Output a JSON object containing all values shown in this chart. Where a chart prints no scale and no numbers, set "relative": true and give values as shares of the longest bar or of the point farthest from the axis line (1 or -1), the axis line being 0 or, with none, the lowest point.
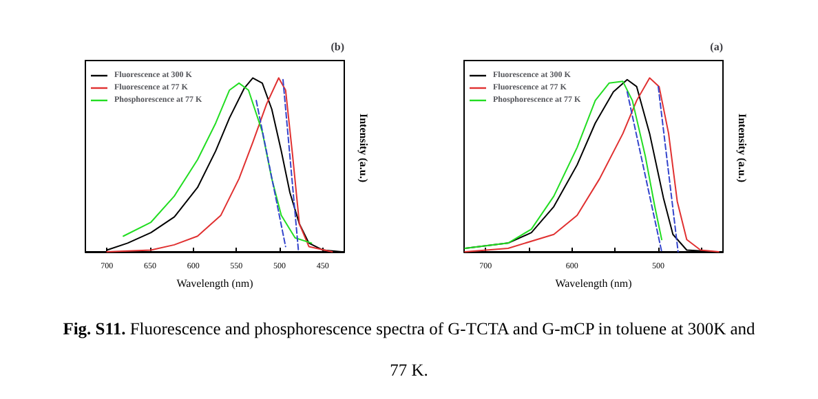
{
  "chart_data": [
    {
      "type": "line",
      "title": "(b)",
      "xlabel": "Wavelength (nm)",
      "ylabel": "Intensity (a.u.)",
      "relative": true,
      "xlim": [
        725,
        425
      ],
      "xticks": [
        700,
        650,
        600,
        550,
        500,
        450
      ],
      "tick_labels": "x",
      "grid": false,
      "legend": "top left",
      "marker": "none",
      "series": [
        {
          "name": "Fluorescence at 300 K",
          "color": "#000000",
          "line_style": "solid",
          "x": [
            700,
            676,
            649,
            622,
            595,
            574,
            558,
            541,
            531,
            520,
            509,
            498,
            488,
            477,
            466,
            450,
            428
          ],
          "values": [
            0.01,
            0.05,
            0.11,
            0.2,
            0.37,
            0.58,
            0.77,
            0.94,
            1.0,
            0.97,
            0.82,
            0.58,
            0.34,
            0.16,
            0.05,
            0.01,
            0
          ]
        },
        {
          "name": "Fluorescence at 77 K",
          "color": "#e03030",
          "line_style": "solid",
          "x": [
            700,
            649,
            622,
            595,
            568,
            547,
            531,
            515,
            501,
            493,
            485,
            477,
            466,
            439
          ],
          "values": [
            0,
            0.01,
            0.04,
            0.09,
            0.21,
            0.42,
            0.63,
            0.85,
            1.0,
            0.93,
            0.56,
            0.16,
            0.03,
            0
          ]
        },
        {
          "name": "Phosphorescence at 77 K",
          "color": "#22dd22",
          "line_style": "solid",
          "x": [
            681,
            649,
            622,
            595,
            574,
            558,
            547,
            536,
            520,
            509,
            498,
            482,
            463
          ],
          "values": [
            0.09,
            0.17,
            0.32,
            0.53,
            0.74,
            0.93,
            0.97,
            0.93,
            0.69,
            0.42,
            0.21,
            0.08,
            0.05
          ]
        },
        {
          "type": "line",
          "color": "#3344cc",
          "line_style": "dashed",
          "x": [
            527,
            493
          ],
          "values": [
            0.87,
            0.03
          ]
        },
        {
          "type": "line",
          "color": "#3344cc",
          "line_style": "dashed",
          "x": [
            496,
            478
          ],
          "values": [
            0.99,
            0
          ]
        }
      ]
    },
    {
      "type": "line",
      "title": "(a)",
      "xlabel": "Wavelength (nm)",
      "ylabel": "Intensity (a.u.)",
      "relative": true,
      "xlim": [
        725,
        425
      ],
      "xticks": [
        700,
        {
          "value": 650,
          "label": null
        },
        600,
        {
          "value": 550,
          "label": null
        },
        500,
        {
          "value": 450,
          "label": null
        }
      ],
      "tick_labels": "x",
      "grid": false,
      "legend": "top left",
      "marker": "none",
      "annotations": [
        "Fig. S11. Fluorescence and phosphorescence spectra of G-TCTA and G-mCP in toluene at 300K and 77 K."
      ],
      "series": [
        {
          "name": "Fluorescence at 300 K",
          "color": "#000000",
          "line_style": "solid",
          "x": [
            724,
            674,
            647,
            621,
            594,
            573,
            552,
            536,
            525,
            510,
            494,
            483,
            467,
            436
          ],
          "values": [
            0.02,
            0.05,
            0.11,
            0.26,
            0.5,
            0.74,
            0.92,
            0.99,
            0.95,
            0.68,
            0.31,
            0.1,
            0.01,
            0
          ]
        },
        {
          "name": "Fluorescence at 77 K",
          "color": "#e03030",
          "line_style": "solid",
          "x": [
            724,
            674,
            621,
            594,
            568,
            541,
            525,
            510,
            499,
            488,
            478,
            467,
            451,
            430
          ],
          "values": [
            0,
            0.02,
            0.1,
            0.21,
            0.42,
            0.68,
            0.87,
            1.0,
            0.95,
            0.68,
            0.29,
            0.07,
            0.01,
            0
          ]
        },
        {
          "name": "Phosphorescence at 77 K",
          "color": "#22dd22",
          "line_style": "solid",
          "x": [
            724,
            674,
            647,
            621,
            594,
            573,
            557,
            541,
            530,
            515,
            504,
            496
          ],
          "values": [
            0.02,
            0.05,
            0.13,
            0.32,
            0.6,
            0.87,
            0.97,
            0.98,
            0.87,
            0.55,
            0.26,
            0.07
          ]
        },
        {
          "type": "line",
          "color": "#3344cc",
          "line_style": "dashed",
          "x": [
            536,
            496
          ],
          "values": [
            0.92,
            0
          ]
        },
        {
          "type": "line",
          "color": "#3344cc",
          "line_style": "dashed",
          "x": [
            500,
            477
          ],
          "values": [
            0.95,
            0
          ]
        }
      ]
    }
  ]
}
